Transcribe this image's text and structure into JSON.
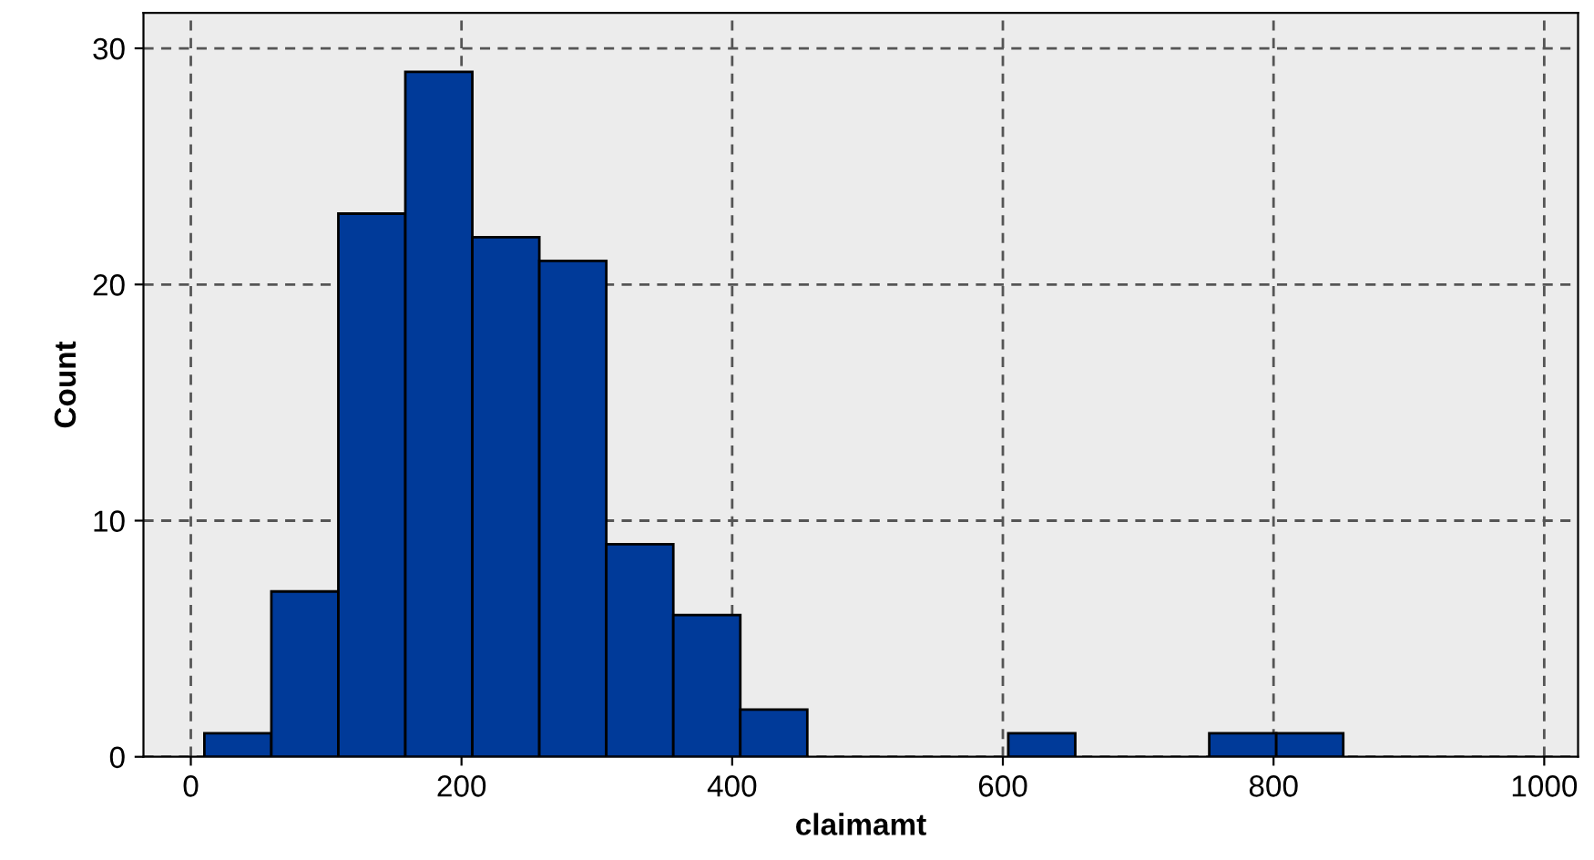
{
  "chart_data": {
    "type": "histogram",
    "xlabel": "claimamt",
    "ylabel": "Count",
    "bins": [
      10,
      59.5,
      109,
      158.5,
      208,
      257.5,
      307,
      356.5,
      406,
      455.5,
      505,
      554.5,
      604,
      653.5,
      703,
      752.5,
      802,
      851.5
    ],
    "values": [
      1,
      7,
      23,
      29,
      22,
      21,
      9,
      6,
      2,
      0,
      0,
      0,
      1,
      0,
      0,
      1,
      1
    ],
    "color": "#003a99",
    "xlim": [
      -35,
      1025
    ],
    "ylim": [
      0,
      31.5
    ],
    "xticks": [
      0,
      200,
      400,
      600,
      800,
      1000
    ],
    "yticks": [
      0,
      10,
      20,
      30
    ],
    "grid": true
  }
}
